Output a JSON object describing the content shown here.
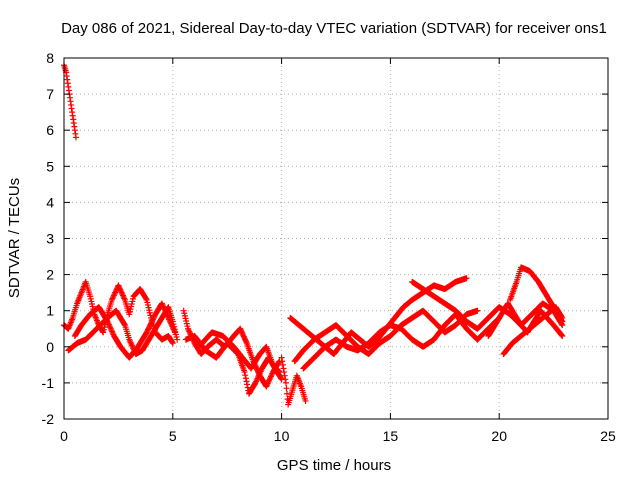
{
  "chart_data": {
    "type": "scatter",
    "title": "Day 086 of 2021, Sidereal Day-to-day VTEC variation (SDTVAR) for receiver ons1",
    "xlabel": "GPS time / hours",
    "ylabel": "SDTVAR / TECUs",
    "xlim": [
      0,
      25
    ],
    "ylim": [
      -2,
      8
    ],
    "xticks": [
      "0",
      "5",
      "10",
      "15",
      "20",
      "25"
    ],
    "yticks": [
      "-2",
      "-1",
      "0",
      "1",
      "2",
      "3",
      "4",
      "5",
      "6",
      "7",
      "8"
    ],
    "grid": true,
    "marker": "+",
    "series": [
      {
        "name": "SDTVAR",
        "color": "#ff0000",
        "traces": [
          [
            [
              0.0,
              7.8
            ],
            [
              0.1,
              7.6
            ],
            [
              0.2,
              7.2
            ],
            [
              0.3,
              6.8
            ],
            [
              0.4,
              6.4
            ],
            [
              0.5,
              6.0
            ],
            [
              0.55,
              5.8
            ]
          ],
          [
            [
              0.0,
              0.6
            ],
            [
              0.2,
              0.5
            ],
            [
              0.4,
              0.8
            ],
            [
              0.6,
              1.2
            ],
            [
              0.8,
              1.5
            ],
            [
              1.0,
              1.8
            ],
            [
              1.2,
              1.4
            ],
            [
              1.4,
              0.9
            ],
            [
              1.6,
              0.6
            ],
            [
              1.8,
              0.4
            ],
            [
              2.0,
              0.9
            ],
            [
              2.2,
              1.3
            ],
            [
              2.5,
              1.7
            ],
            [
              2.8,
              1.3
            ],
            [
              3.0,
              0.9
            ],
            [
              3.2,
              1.4
            ],
            [
              3.5,
              1.6
            ],
            [
              3.8,
              1.3
            ],
            [
              4.0,
              0.8
            ],
            [
              4.2,
              0.4
            ],
            [
              4.5,
              0.2
            ],
            [
              4.8,
              0.3
            ],
            [
              5.0,
              0.1
            ]
          ],
          [
            [
              0.2,
              -0.1
            ],
            [
              0.6,
              0.1
            ],
            [
              1.0,
              0.2
            ],
            [
              1.5,
              0.5
            ],
            [
              2.0,
              0.8
            ],
            [
              2.4,
              1.0
            ],
            [
              2.8,
              0.6
            ],
            [
              3.0,
              0.2
            ],
            [
              3.3,
              -0.2
            ],
            [
              3.6,
              -0.1
            ],
            [
              4.0,
              0.3
            ],
            [
              4.4,
              0.7
            ],
            [
              4.8,
              1.1
            ],
            [
              5.0,
              0.7
            ],
            [
              5.2,
              0.2
            ]
          ],
          [
            [
              0.5,
              0.3
            ],
            [
              0.8,
              0.6
            ],
            [
              1.2,
              0.9
            ],
            [
              1.6,
              1.1
            ],
            [
              2.0,
              0.7
            ],
            [
              2.3,
              0.3
            ],
            [
              2.6,
              0.0
            ],
            [
              3.0,
              -0.3
            ],
            [
              3.4,
              0.0
            ],
            [
              3.8,
              0.4
            ],
            [
              4.2,
              0.9
            ],
            [
              4.5,
              1.2
            ],
            [
              4.8,
              0.8
            ],
            [
              5.1,
              0.4
            ]
          ],
          [
            [
              5.5,
              1.0
            ],
            [
              5.7,
              0.5
            ],
            [
              6.0,
              0.1
            ],
            [
              6.3,
              -0.2
            ],
            [
              6.6,
              0.0
            ],
            [
              7.0,
              0.2
            ],
            [
              7.4,
              0.0
            ],
            [
              7.8,
              0.3
            ],
            [
              8.1,
              0.5
            ],
            [
              8.4,
              0.1
            ],
            [
              8.7,
              -0.4
            ],
            [
              9.0,
              -0.8
            ],
            [
              9.3,
              -1.1
            ],
            [
              9.6,
              -0.7
            ],
            [
              9.9,
              -0.4
            ]
          ],
          [
            [
              5.6,
              0.2
            ],
            [
              6.0,
              0.3
            ],
            [
              6.5,
              -0.1
            ],
            [
              7.0,
              -0.3
            ],
            [
              7.5,
              0.1
            ],
            [
              8.0,
              -0.2
            ],
            [
              8.3,
              -0.7
            ],
            [
              8.5,
              -1.3
            ],
            [
              8.8,
              -1.0
            ],
            [
              9.1,
              -0.6
            ],
            [
              9.4,
              -0.3
            ],
            [
              9.7,
              -0.6
            ],
            [
              10.0,
              -0.9
            ]
          ],
          [
            [
              6.2,
              0.0
            ],
            [
              6.8,
              0.4
            ],
            [
              7.3,
              0.3
            ],
            [
              7.8,
              0.0
            ],
            [
              8.2,
              -0.3
            ],
            [
              8.6,
              -0.6
            ],
            [
              9.0,
              -0.2
            ],
            [
              9.3,
              0.0
            ],
            [
              9.6,
              -0.5
            ],
            [
              9.9,
              -0.7
            ]
          ],
          [
            [
              10.0,
              -0.3
            ],
            [
              10.2,
              -1.0
            ],
            [
              10.3,
              -1.6
            ],
            [
              10.5,
              -1.2
            ],
            [
              10.7,
              -0.8
            ],
            [
              10.9,
              -1.1
            ],
            [
              11.1,
              -1.5
            ]
          ],
          [
            [
              10.4,
              0.8
            ],
            [
              10.8,
              0.6
            ],
            [
              11.2,
              0.4
            ],
            [
              11.6,
              0.2
            ],
            [
              12.0,
              0.0
            ],
            [
              12.4,
              -0.2
            ],
            [
              12.8,
              0.1
            ],
            [
              13.2,
              0.4
            ],
            [
              13.6,
              0.2
            ],
            [
              14.0,
              0.0
            ],
            [
              14.4,
              0.2
            ],
            [
              14.8,
              0.5
            ],
            [
              15.2,
              0.8
            ],
            [
              15.6,
              1.1
            ],
            [
              16.0,
              1.3
            ],
            [
              16.5,
              1.5
            ],
            [
              17.0,
              1.7
            ],
            [
              17.5,
              1.6
            ],
            [
              18.0,
              1.8
            ],
            [
              18.5,
              1.9
            ]
          ],
          [
            [
              10.6,
              -0.4
            ],
            [
              11.0,
              -0.1
            ],
            [
              11.5,
              0.2
            ],
            [
              12.0,
              0.4
            ],
            [
              12.5,
              0.6
            ],
            [
              13.0,
              0.3
            ],
            [
              13.5,
              0.0
            ],
            [
              14.0,
              -0.2
            ],
            [
              14.5,
              0.1
            ],
            [
              15.0,
              0.3
            ],
            [
              15.5,
              0.6
            ],
            [
              16.0,
              0.8
            ],
            [
              16.5,
              1.0
            ],
            [
              17.0,
              0.7
            ],
            [
              17.5,
              0.4
            ],
            [
              18.0,
              0.6
            ],
            [
              18.5,
              0.9
            ],
            [
              19.0,
              1.0
            ]
          ],
          [
            [
              11.0,
              -0.6
            ],
            [
              11.5,
              -0.3
            ],
            [
              12.0,
              0.0
            ],
            [
              12.5,
              0.2
            ],
            [
              13.0,
              0.0
            ],
            [
              13.5,
              -0.1
            ],
            [
              14.0,
              0.1
            ],
            [
              14.5,
              0.4
            ],
            [
              15.0,
              0.6
            ],
            [
              15.5,
              0.5
            ],
            [
              16.0,
              0.2
            ],
            [
              16.5,
              0.0
            ],
            [
              17.0,
              0.2
            ],
            [
              17.5,
              0.6
            ],
            [
              18.0,
              0.9
            ],
            [
              18.5,
              0.5
            ],
            [
              19.0,
              0.2
            ],
            [
              19.5,
              0.5
            ],
            [
              20.0,
              0.8
            ]
          ],
          [
            [
              16.0,
              1.8
            ],
            [
              16.5,
              1.6
            ],
            [
              17.0,
              1.4
            ],
            [
              17.5,
              1.2
            ],
            [
              18.0,
              1.0
            ],
            [
              18.5,
              0.7
            ],
            [
              19.0,
              0.5
            ],
            [
              19.5,
              0.8
            ],
            [
              20.0,
              1.1
            ],
            [
              20.5,
              0.9
            ],
            [
              21.0,
              0.6
            ],
            [
              21.5,
              0.9
            ],
            [
              22.0,
              1.2
            ],
            [
              22.5,
              1.0
            ],
            [
              22.9,
              0.6
            ]
          ],
          [
            [
              20.5,
              1.3
            ],
            [
              20.8,
              1.8
            ],
            [
              21.0,
              2.2
            ],
            [
              21.4,
              2.1
            ],
            [
              21.8,
              1.8
            ],
            [
              22.2,
              1.4
            ],
            [
              22.6,
              1.0
            ],
            [
              22.9,
              0.7
            ]
          ],
          [
            [
              19.5,
              0.3
            ],
            [
              19.8,
              0.6
            ],
            [
              20.1,
              0.9
            ],
            [
              20.4,
              1.2
            ],
            [
              20.7,
              0.9
            ],
            [
              21.0,
              0.6
            ],
            [
              21.3,
              0.4
            ],
            [
              21.6,
              0.7
            ],
            [
              21.9,
              1.0
            ],
            [
              22.2,
              0.8
            ],
            [
              22.5,
              0.6
            ],
            [
              22.9,
              0.3
            ]
          ],
          [
            [
              20.2,
              -0.2
            ],
            [
              20.6,
              0.1
            ],
            [
              21.0,
              0.3
            ],
            [
              21.4,
              0.5
            ],
            [
              21.8,
              0.7
            ],
            [
              22.2,
              0.9
            ],
            [
              22.6,
              1.1
            ],
            [
              22.9,
              0.8
            ]
          ]
        ]
      }
    ]
  }
}
